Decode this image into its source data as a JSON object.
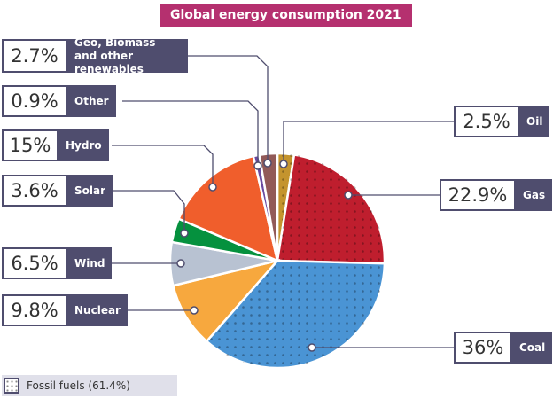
{
  "chart_data": {
    "type": "pie",
    "title": "Global energy consumption 2021",
    "slices": [
      {
        "label": "Oil",
        "value": 2.5,
        "display": "2.5%",
        "color": "#c4942e",
        "fossil": true
      },
      {
        "label": "Gas",
        "value": 22.9,
        "display": "22.9%",
        "color": "#bf1e2e",
        "fossil": true
      },
      {
        "label": "Coal",
        "value": 36,
        "display": "36%",
        "color": "#4a94d4",
        "fossil": true
      },
      {
        "label": "Nuclear",
        "value": 9.8,
        "display": "9.8%",
        "color": "#f7a83e",
        "fossil": false
      },
      {
        "label": "Wind",
        "value": 6.5,
        "display": "6.5%",
        "color": "#b8c2d2",
        "fossil": false
      },
      {
        "label": "Solar",
        "value": 3.6,
        "display": "3.6%",
        "color": "#05913e",
        "fossil": false
      },
      {
        "label": "Hydro",
        "value": 15,
        "display": "15%",
        "color": "#f05e2c",
        "fossil": false
      },
      {
        "label": "Other",
        "value": 0.9,
        "display": "0.9%",
        "color": "#6a4aa0",
        "fossil": false
      },
      {
        "label": "Geo, Biomass and other renewables",
        "value": 2.7,
        "display": "2.7%",
        "color": "#925a58",
        "fossil": false
      }
    ],
    "legend": {
      "label": "Fossil fuels (61.4%)",
      "position": "bottom-left"
    }
  }
}
